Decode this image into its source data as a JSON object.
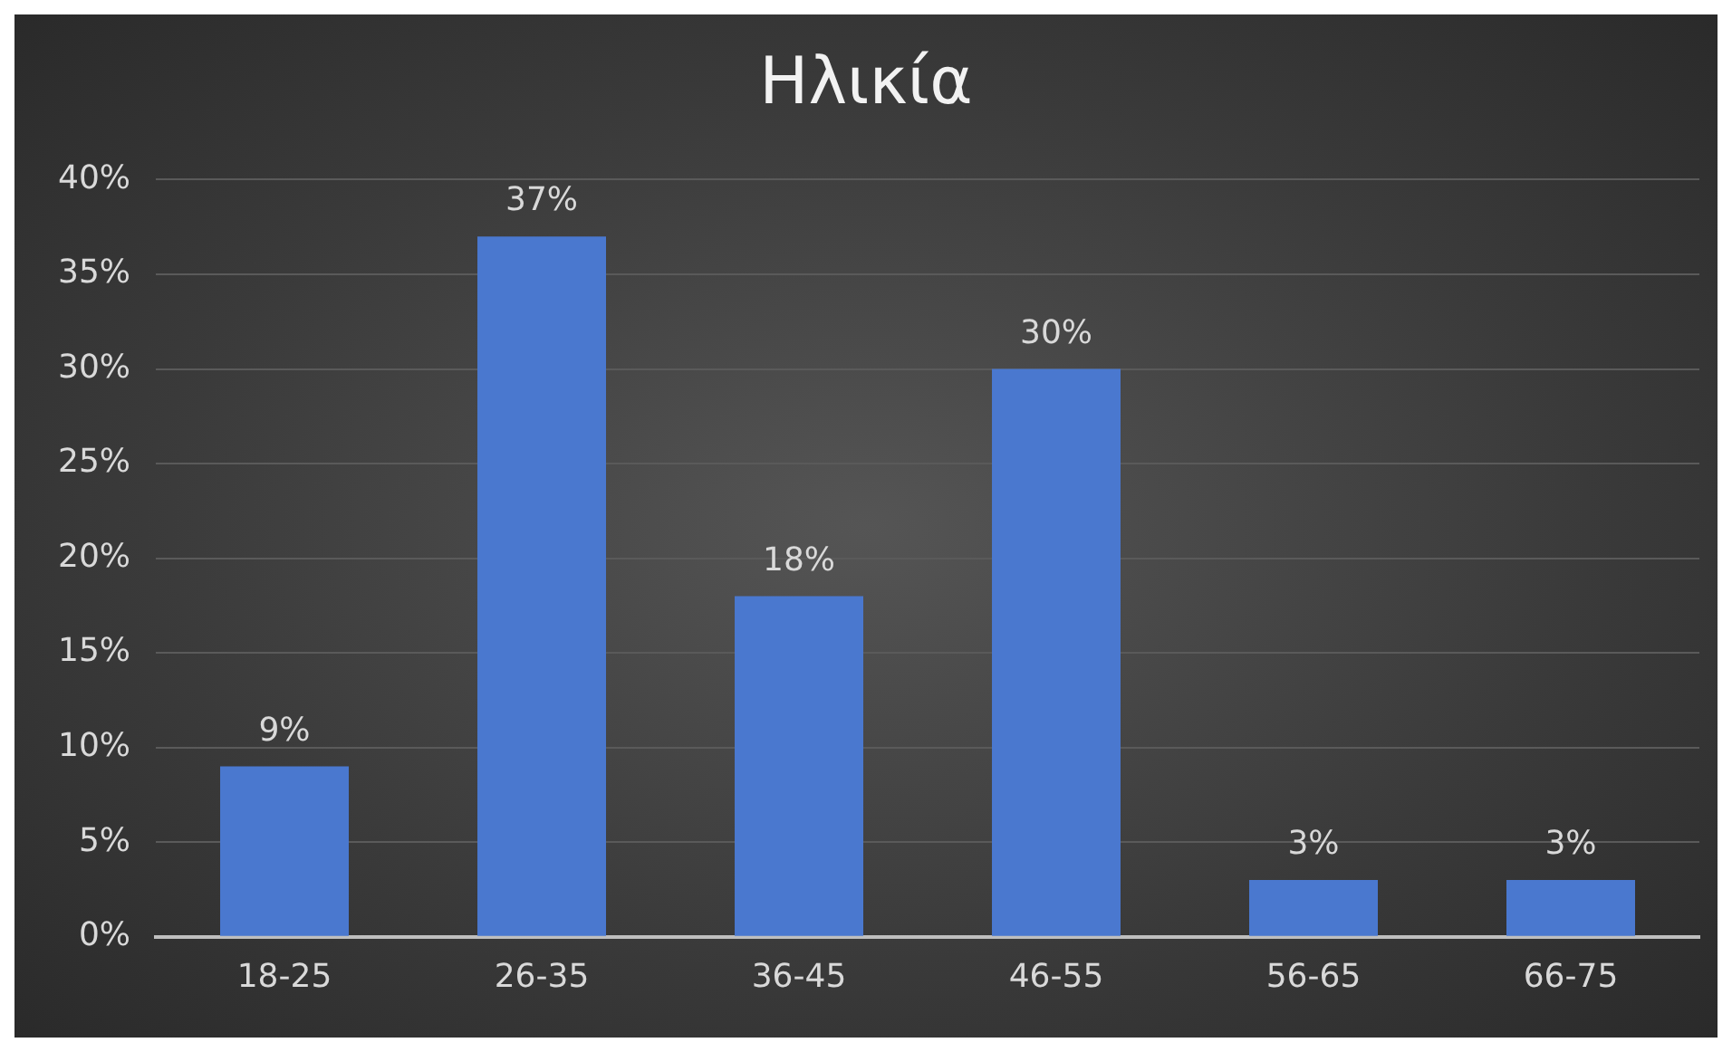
{
  "chart_data": {
    "type": "bar",
    "title": "Ηλικία",
    "categories": [
      "18-25",
      "26-35",
      "36-45",
      "46-55",
      "56-65",
      "66-75"
    ],
    "values": [
      9,
      37,
      18,
      30,
      3,
      3
    ],
    "value_labels": [
      "9%",
      "37%",
      "18%",
      "30%",
      "3%",
      "3%"
    ],
    "color": "#4a78cf",
    "ylim": [
      0,
      40
    ],
    "yticks": [
      {
        "value": 0,
        "label": "0%"
      },
      {
        "value": 5,
        "label": "5%"
      },
      {
        "value": 10,
        "label": "10%"
      },
      {
        "value": 15,
        "label": "15%"
      },
      {
        "value": 20,
        "label": "20%"
      },
      {
        "value": 25,
        "label": "25%"
      },
      {
        "value": 30,
        "label": "30%"
      },
      {
        "value": 35,
        "label": "35%"
      },
      {
        "value": 40,
        "label": "40%"
      }
    ],
    "grid": "y",
    "legend": false
  }
}
